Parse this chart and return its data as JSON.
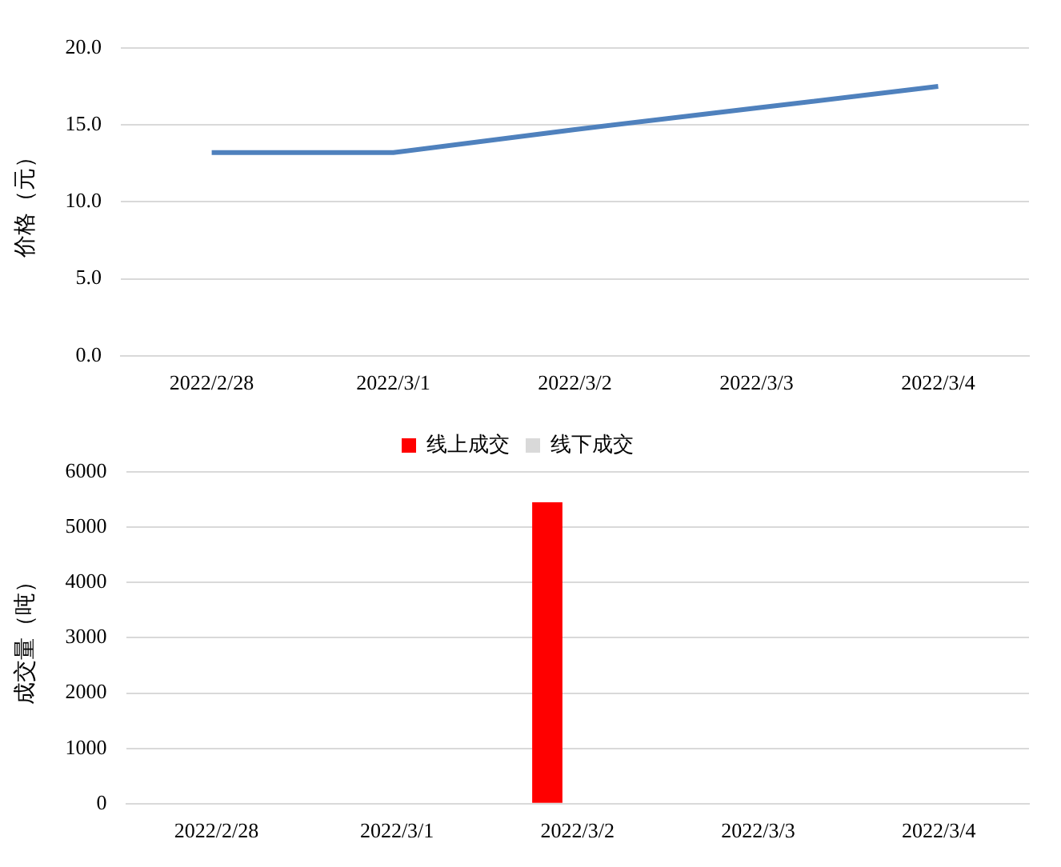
{
  "chart_data": [
    {
      "type": "line",
      "categories": [
        "2022/2/28",
        "2022/3/1",
        "2022/3/2",
        "2022/3/3",
        "2022/3/4"
      ],
      "values": [
        13.2,
        13.2,
        14.7,
        16.1,
        17.5
      ],
      "color": "#4f81bd",
      "ylabel": "价格（元）",
      "ylim": [
        0,
        20
      ],
      "yticks": [
        {
          "value": 0,
          "label": "0.0"
        },
        {
          "value": 5,
          "label": "5.0"
        },
        {
          "value": 10,
          "label": "10.0"
        },
        {
          "value": 15,
          "label": "15.0"
        },
        {
          "value": 20,
          "label": "20.0"
        }
      ],
      "grid": "y",
      "marker": "none"
    },
    {
      "type": "bar",
      "categories": [
        "2022/2/28",
        "2022/3/1",
        "2022/3/2",
        "2022/3/3",
        "2022/3/4"
      ],
      "series": [
        {
          "name": "线上成交",
          "color": "#ff0000",
          "values": [
            null,
            null,
            5450,
            null,
            null
          ]
        },
        {
          "name": "线下成交",
          "color": "#d9d9d9",
          "values": [
            null,
            null,
            null,
            null,
            null
          ]
        }
      ],
      "ylabel": "成交量（吨）",
      "ylim": [
        0,
        6000
      ],
      "yticks": [
        0,
        1000,
        2000,
        3000,
        4000,
        5000,
        6000
      ],
      "grid": "y",
      "legend": "top"
    }
  ]
}
